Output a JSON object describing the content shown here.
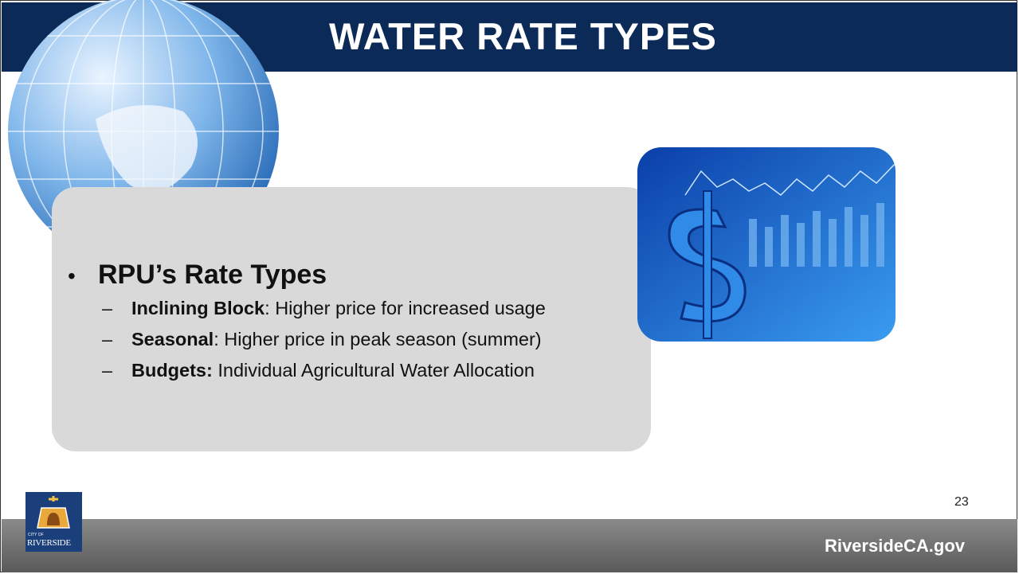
{
  "slide": {
    "title": "WATER RATE TYPES",
    "bullet": {
      "marker": "•",
      "text": "RPU’s Rate Types"
    },
    "items": [
      {
        "marker": "–",
        "term": "Inclining Block",
        "text": ": Higher price for increased usage"
      },
      {
        "marker": "–",
        "term": "Seasonal",
        "text": ": Higher price in peak season (summer)"
      },
      {
        "marker": "–",
        "term": "Budgets:",
        "text": " Individual Agricultural Water Allocation"
      }
    ],
    "page_number": "23",
    "footer": {
      "website": "RiversideCA.gov",
      "logo_top": "CITY OF",
      "logo_name": "RIVERSIDE"
    }
  }
}
